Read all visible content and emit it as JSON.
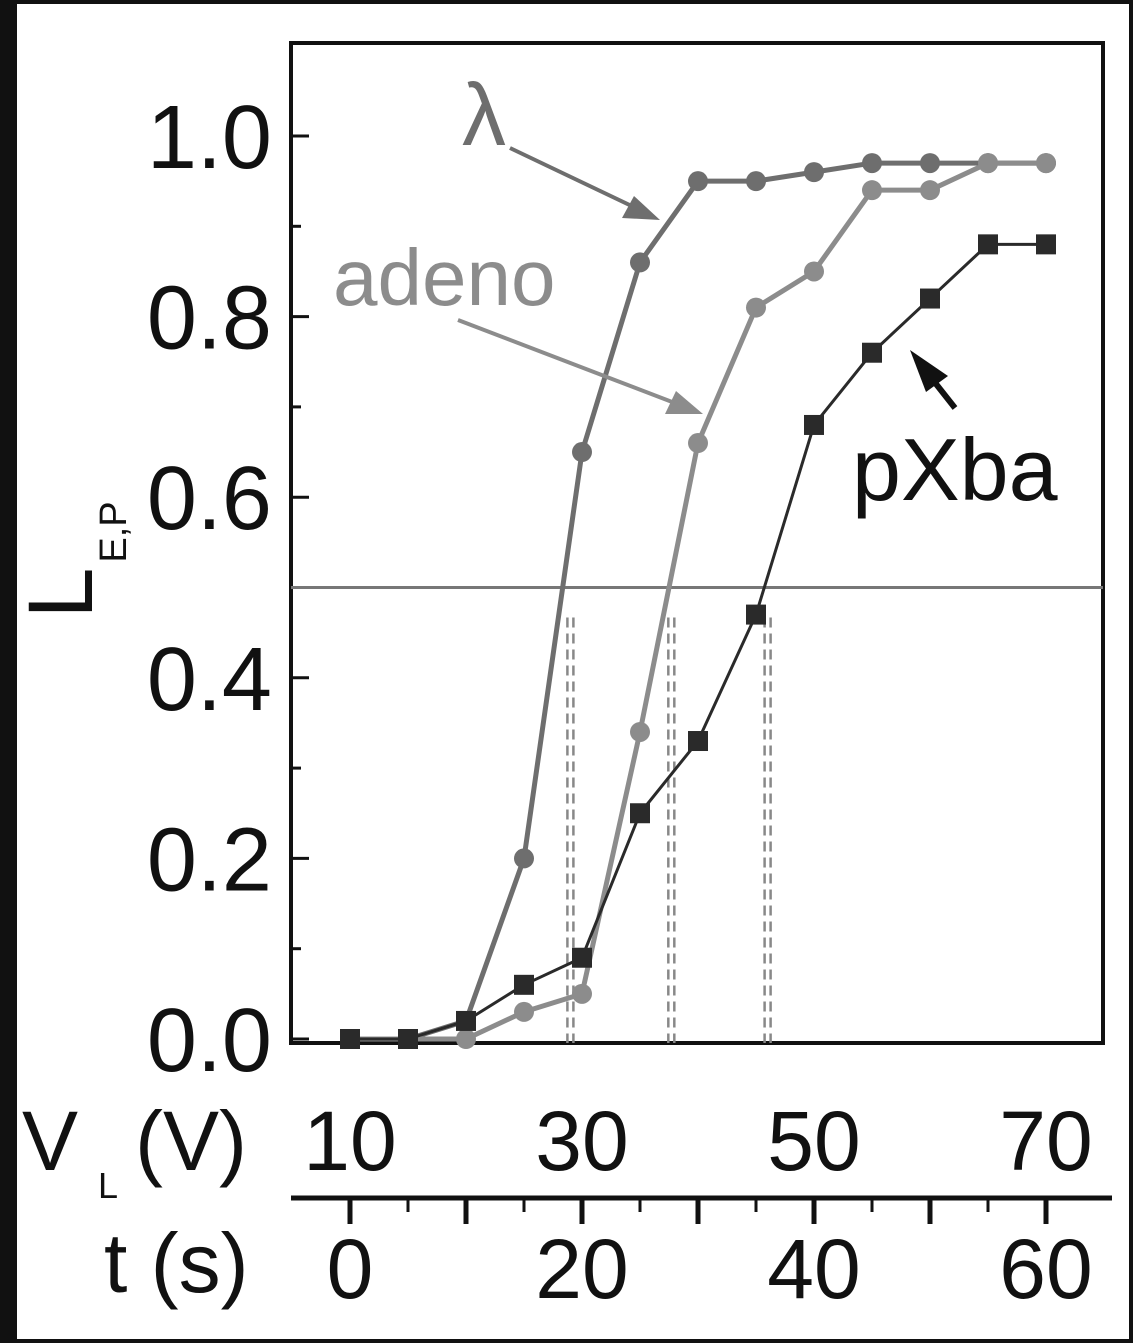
{
  "chart_data": {
    "type": "line",
    "ylabel_main": "L",
    "ylabel_sub": "E,P",
    "x_axes": [
      {
        "label_main": "V",
        "label_sub": "L",
        "label_unit": "(V)",
        "range": [
          10,
          70
        ],
        "tick_labels": [
          "10",
          "30",
          "50",
          "70"
        ]
      },
      {
        "label": "t (s)",
        "range": [
          0,
          60
        ],
        "tick_labels": [
          "0",
          "20",
          "40",
          "60"
        ]
      }
    ],
    "ylim": [
      0,
      1.1
    ],
    "yticks": [
      "0.0",
      "0.2",
      "0.4",
      "0.6",
      "0.8",
      "1.0"
    ],
    "reference_line_y": 0.5,
    "crossings_x": [
      29,
      37.7,
      46
    ],
    "series": [
      {
        "name": "λ",
        "marker": "circle",
        "color": "#6e6e6e",
        "lineWidth": 5,
        "x": [
          10,
          15,
          20,
          25,
          30,
          35,
          40,
          45,
          50,
          55,
          60,
          65,
          70
        ],
        "y": [
          0.0,
          0.0,
          0.02,
          0.2,
          0.65,
          0.86,
          0.95,
          0.95,
          0.96,
          0.97,
          0.97,
          0.97,
          0.97
        ]
      },
      {
        "name": "adeno",
        "marker": "circle",
        "color": "#8c8c8c",
        "lineWidth": 5,
        "x": [
          10,
          15,
          20,
          25,
          30,
          35,
          40,
          45,
          50,
          55,
          60,
          65,
          70
        ],
        "y": [
          0.0,
          0.0,
          0.0,
          0.03,
          0.05,
          0.34,
          0.66,
          0.81,
          0.85,
          0.94,
          0.94,
          0.97,
          0.97
        ]
      },
      {
        "name": "pXba",
        "marker": "square",
        "color": "#2a2a2a",
        "lineWidth": 3,
        "x": [
          10,
          15,
          20,
          25,
          30,
          35,
          40,
          45,
          50,
          55,
          60,
          65,
          70
        ],
        "y": [
          0.0,
          0.0,
          0.02,
          0.06,
          0.09,
          0.25,
          0.33,
          0.47,
          0.68,
          0.76,
          0.82,
          0.88,
          0.88
        ]
      }
    ],
    "annotations": [
      {
        "text": "λ",
        "series": "λ",
        "color": "#6e6e6e"
      },
      {
        "text": "adeno",
        "series": "adeno",
        "color": "#8c8c8c"
      },
      {
        "text": "pXba",
        "series": "pXba",
        "color": "#111111"
      }
    ]
  }
}
